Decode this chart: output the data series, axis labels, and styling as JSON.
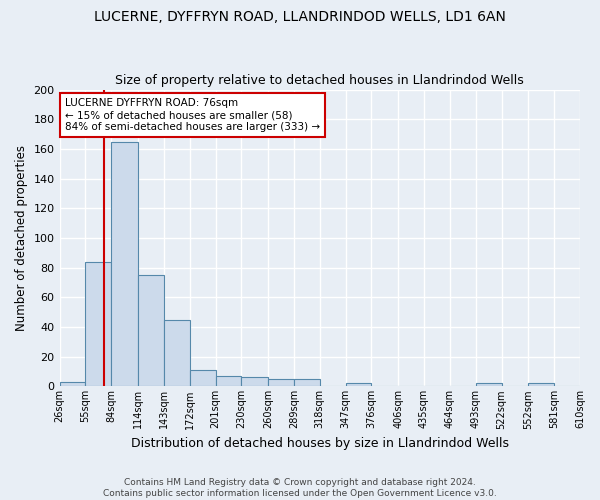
{
  "title": "LUCERNE, DYFFRYN ROAD, LLANDRINDOD WELLS, LD1 6AN",
  "subtitle": "Size of property relative to detached houses in Llandrindod Wells",
  "xlabel": "Distribution of detached houses by size in Llandrindod Wells",
  "ylabel": "Number of detached properties",
  "bins": [
    26,
    55,
    84,
    114,
    143,
    172,
    201,
    230,
    260,
    289,
    318,
    347,
    376,
    406,
    435,
    464,
    493,
    522,
    552,
    581,
    610
  ],
  "bar_heights": [
    3,
    84,
    165,
    75,
    45,
    11,
    7,
    6,
    5,
    5,
    0,
    2,
    0,
    0,
    0,
    0,
    2,
    0,
    2,
    0
  ],
  "bar_color": "#ccdaeb",
  "bar_edge_color": "#5588aa",
  "property_size": 76,
  "vline_color": "#cc0000",
  "annotation_line1": "LUCERNE DYFFRYN ROAD: 76sqm",
  "annotation_line2": "← 15% of detached houses are smaller (58)",
  "annotation_line3": "84% of semi-detached houses are larger (333) →",
  "annotation_box_color": "#ffffff",
  "annotation_box_edge": "#cc0000",
  "ylim": [
    0,
    200
  ],
  "yticks": [
    0,
    20,
    40,
    60,
    80,
    100,
    120,
    140,
    160,
    180,
    200
  ],
  "footer_text": "Contains HM Land Registry data © Crown copyright and database right 2024.\nContains public sector information licensed under the Open Government Licence v3.0.",
  "bg_color": "#e8eef5",
  "plot_bg_color": "#e8eef5",
  "grid_color": "#ffffff",
  "title_fontsize": 10,
  "subtitle_fontsize": 9
}
